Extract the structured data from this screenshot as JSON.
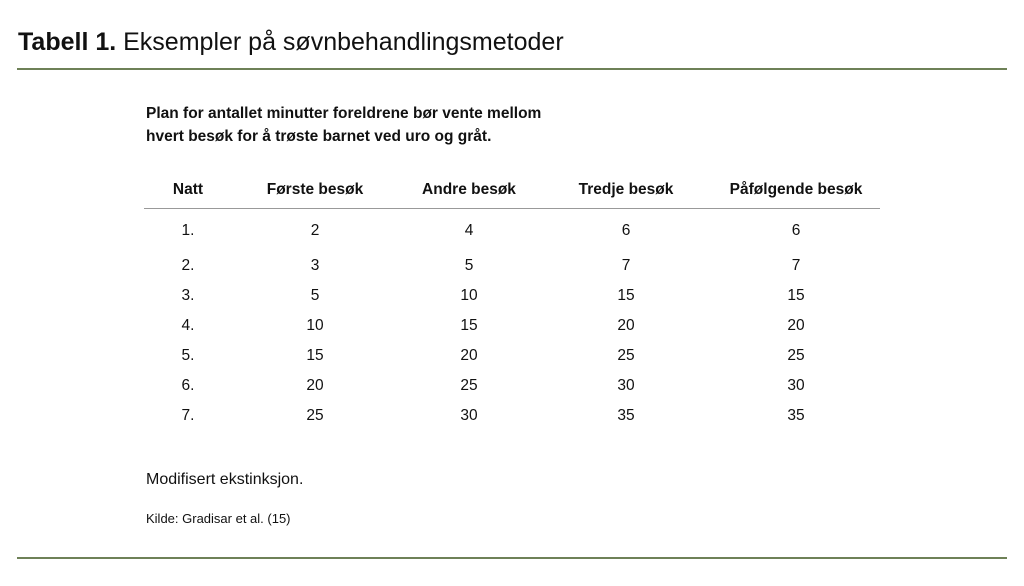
{
  "title": {
    "label": "Tabell 1.",
    "text": " Eksempler på søvnbehandlingsmetoder"
  },
  "subtitle": [
    "Plan for antallet minutter foreldrene bør vente mellom",
    "hvert besøk for å trøste barnet ved uro og gråt."
  ],
  "table": {
    "headers": [
      "Natt",
      "Første besøk",
      "Andre besøk",
      "Tredje besøk",
      "Påfølgende besøk"
    ],
    "rows": [
      [
        "1.",
        "2",
        "4",
        "6",
        "6"
      ],
      [
        "2.",
        "3",
        "5",
        "7",
        "7"
      ],
      [
        "3.",
        "5",
        "10",
        "15",
        "15"
      ],
      [
        "4.",
        "10",
        "15",
        "20",
        "20"
      ],
      [
        "5.",
        "15",
        "20",
        "25",
        "25"
      ],
      [
        "6.",
        "20",
        "25",
        "30",
        "30"
      ],
      [
        "7.",
        "25",
        "30",
        "35",
        "35"
      ]
    ]
  },
  "note": "Modifisert ekstinksjon.",
  "source": "Kilde: Gradisar et al. (15)",
  "colors": {
    "rule": "#6e8157"
  }
}
